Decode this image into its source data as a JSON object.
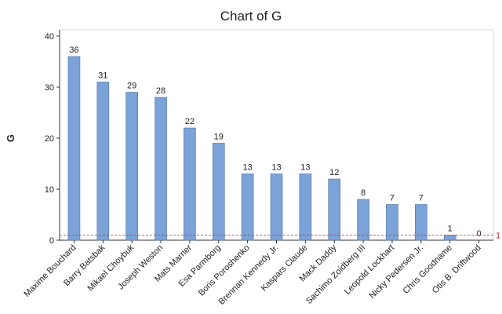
{
  "chart_data": {
    "type": "bar",
    "title": "Chart of G",
    "y_label": "G",
    "categories": [
      "Maxime Bouchard",
      "Barry Batsbak",
      "Mikael Choybuk",
      "Joseph Weston",
      "Mats Marner",
      "Esa Parmborg",
      "Boris Poroshenko",
      "Brennan Kennedy Jr.",
      "Kaspars Claude",
      "Mack Daddy",
      "Sachimo Zoidberg III",
      "Leopold Lockhart",
      "Nicky Pedersen Jr.",
      "Chris Goodname",
      "Otis B. Driftwood"
    ],
    "values": [
      36,
      31,
      29,
      28,
      22,
      19,
      13,
      13,
      13,
      12,
      8,
      7,
      7,
      1,
      0
    ],
    "color": "#7ba3d8",
    "ylim": [
      0,
      40
    ],
    "yticks": [
      0,
      10,
      20,
      30,
      40
    ],
    "reference_line": {
      "value": 1,
      "color": "#c03030"
    }
  }
}
